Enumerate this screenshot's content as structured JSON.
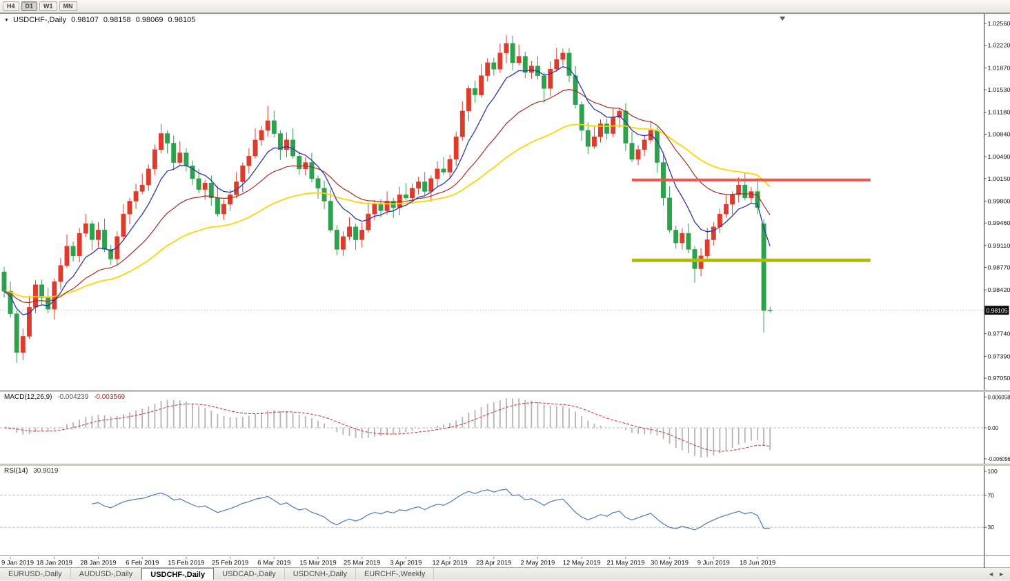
{
  "toolbar": {
    "timeframes": [
      "H4",
      "D1",
      "W1",
      "MN"
    ],
    "active": "D1"
  },
  "tabs": {
    "items": [
      "EURUSD-,Daily",
      "AUDUSD-,Daily",
      "USDCHF-,Daily",
      "USDCAD-,Daily",
      "USDCNH-,Daily",
      "EURCHF-,Weekly"
    ],
    "active_index": 2,
    "nav_left_icon": "◄",
    "nav_right_icon": "►"
  },
  "chart_data": {
    "type": "candlestick",
    "symbol": "USDCHF-",
    "timeframe": "Daily",
    "title": {
      "symbol": "USDCHF-,Daily",
      "marker_icon": "▼"
    },
    "title_quote": {
      "open": "0.98107",
      "high": "0.98158",
      "low": "0.98069",
      "close": "0.98105"
    },
    "price_axis": {
      "top": 1.0256,
      "bottom": 0.9705,
      "labels": [
        "1.02560",
        "1.02220",
        "1.01870",
        "1.01530",
        "1.01180",
        "1.00840",
        "1.00490",
        "1.00150",
        "0.99800",
        "0.99460",
        "0.99110",
        "0.98770",
        "0.98420",
        "0.97740",
        "0.97390",
        "0.97050"
      ]
    },
    "current_price": 0.98105,
    "current_price_label": "0.98105",
    "price_line_color": "#b0b0b0",
    "candle_colors": {
      "bull": "#dd3c2c",
      "bear": "#2da14c"
    },
    "candles": [
      [
        0.987,
        0.9878,
        0.983,
        0.984
      ],
      [
        0.984,
        0.9855,
        0.9799,
        0.9805
      ],
      [
        0.9805,
        0.981,
        0.9729,
        0.9745
      ],
      [
        0.9745,
        0.9782,
        0.9733,
        0.977
      ],
      [
        0.977,
        0.9833,
        0.9766,
        0.9815
      ],
      [
        0.9815,
        0.9857,
        0.9806,
        0.985
      ],
      [
        0.985,
        0.9858,
        0.982,
        0.983
      ],
      [
        0.983,
        0.9845,
        0.9806,
        0.9812
      ],
      [
        0.9812,
        0.986,
        0.9796,
        0.9855
      ],
      [
        0.9855,
        0.9892,
        0.9843,
        0.988
      ],
      [
        0.988,
        0.9928,
        0.9876,
        0.991
      ],
      [
        0.991,
        0.9917,
        0.9886,
        0.9895
      ],
      [
        0.9895,
        0.9938,
        0.9885,
        0.993
      ],
      [
        0.993,
        0.996,
        0.9924,
        0.9945
      ],
      [
        0.9945,
        0.995,
        0.9904,
        0.992
      ],
      [
        0.992,
        0.9947,
        0.9908,
        0.9935
      ],
      [
        0.9935,
        0.9953,
        0.9901,
        0.9905
      ],
      [
        0.9905,
        0.9912,
        0.9881,
        0.989
      ],
      [
        0.989,
        0.9933,
        0.988,
        0.9925
      ],
      [
        0.9925,
        0.9975,
        0.9919,
        0.996
      ],
      [
        0.996,
        0.9985,
        0.9944,
        0.998
      ],
      [
        0.998,
        1.0007,
        0.9968,
        0.9995
      ],
      [
        0.9995,
        1.0023,
        0.9991,
        1.0005
      ],
      [
        1.0005,
        1.0037,
        0.9996,
        1.003
      ],
      [
        1.003,
        1.0068,
        1.002,
        1.006
      ],
      [
        1.006,
        1.01,
        1.0054,
        1.0085
      ],
      [
        1.0085,
        1.009,
        1.0054,
        1.007
      ],
      [
        1.007,
        1.0082,
        1.0028,
        1.004
      ],
      [
        1.004,
        1.0073,
        1.0036,
        1.0055
      ],
      [
        1.0055,
        1.0062,
        1.0026,
        1.0035
      ],
      [
        1.0035,
        1.0043,
        1.0005,
        1.0015
      ],
      [
        1.0015,
        1.003,
        0.9992,
        0.9998
      ],
      [
        0.9998,
        1.0013,
        0.9982,
        1.0008
      ],
      [
        1.0008,
        1.002,
        0.9973,
        0.9985
      ],
      [
        0.9985,
        1.0003,
        0.9956,
        0.996
      ],
      [
        0.996,
        0.9982,
        0.9951,
        0.9975
      ],
      [
        0.9975,
        0.9998,
        0.9965,
        0.999
      ],
      [
        0.999,
        1.0025,
        0.9984,
        1.001
      ],
      [
        1.001,
        1.004,
        0.9994,
        1.0035
      ],
      [
        1.0035,
        1.0062,
        1.0023,
        1.005
      ],
      [
        1.005,
        1.0093,
        1.0046,
        1.0075
      ],
      [
        1.0075,
        1.0097,
        1.0066,
        1.009
      ],
      [
        1.009,
        1.0128,
        1.008,
        1.0105
      ],
      [
        1.0105,
        1.012,
        1.0079,
        1.0085
      ],
      [
        1.0085,
        1.009,
        1.0044,
        1.006
      ],
      [
        1.006,
        1.0087,
        1.0048,
        1.0075
      ],
      [
        1.0075,
        1.0093,
        1.0046,
        1.005
      ],
      [
        1.005,
        1.0057,
        1.0021,
        1.003
      ],
      [
        1.003,
        1.0048,
        1.002,
        1.004
      ],
      [
        1.004,
        1.0055,
        1.0009,
        1.0015
      ],
      [
        1.0015,
        1.002,
        0.9984,
        1.0
      ],
      [
        1.0,
        1.0012,
        0.9968,
        0.998
      ],
      [
        0.998,
        0.9998,
        0.9931,
        0.9935
      ],
      [
        0.9935,
        0.9942,
        0.9896,
        0.9905
      ],
      [
        0.9905,
        0.9933,
        0.9895,
        0.9925
      ],
      [
        0.9925,
        0.9955,
        0.9919,
        0.994
      ],
      [
        0.994,
        0.9945,
        0.9904,
        0.992
      ],
      [
        0.992,
        0.9947,
        0.9908,
        0.9935
      ],
      [
        0.9935,
        0.9978,
        0.9931,
        0.996
      ],
      [
        0.996,
        0.9982,
        0.9951,
        0.9975
      ],
      [
        0.9975,
        0.9983,
        0.9955,
        0.9965
      ],
      [
        0.9965,
        0.9995,
        0.9959,
        0.998
      ],
      [
        0.998,
        0.9985,
        0.9954,
        0.997
      ],
      [
        0.997,
        1.0002,
        0.9958,
        0.999
      ],
      [
        0.999,
        1.0008,
        0.9981,
        0.9985
      ],
      [
        0.9985,
        1.0007,
        0.9976,
        1.0
      ],
      [
        1.0,
        1.0018,
        0.999,
        1.001
      ],
      [
        1.001,
        1.0025,
        0.9989,
        0.9995
      ],
      [
        0.9995,
        1.002,
        0.9979,
        1.0015
      ],
      [
        1.0015,
        1.0042,
        1.0003,
        1.003
      ],
      [
        1.003,
        1.0048,
        1.0021,
        1.0025
      ],
      [
        1.0025,
        1.0052,
        1.0016,
        1.0045
      ],
      [
        1.0045,
        1.0088,
        1.0035,
        1.008
      ],
      [
        1.008,
        1.0135,
        1.0074,
        1.012
      ],
      [
        1.012,
        1.016,
        1.0104,
        1.0155
      ],
      [
        1.0155,
        1.0167,
        1.0133,
        1.0145
      ],
      [
        1.0145,
        1.0193,
        1.0141,
        1.0175
      ],
      [
        1.0175,
        1.0202,
        1.0166,
        1.0195
      ],
      [
        1.0195,
        1.0203,
        1.0175,
        1.0185
      ],
      [
        1.0185,
        1.0225,
        1.0179,
        1.021
      ],
      [
        1.021,
        1.0238,
        1.0194,
        1.0225
      ],
      [
        1.0225,
        1.0237,
        1.0183,
        1.0195
      ],
      [
        1.0195,
        1.0223,
        1.0191,
        1.0205
      ],
      [
        1.0205,
        1.0212,
        1.0171,
        1.018
      ],
      [
        1.018,
        1.0198,
        1.017,
        1.019
      ],
      [
        1.019,
        1.0205,
        1.0169,
        1.0175
      ],
      [
        1.0175,
        1.018,
        1.0133,
        1.0155
      ],
      [
        1.0155,
        1.0197,
        1.0143,
        1.0185
      ],
      [
        1.0185,
        1.0218,
        1.0181,
        1.02
      ],
      [
        1.02,
        1.0217,
        1.0191,
        1.021
      ],
      [
        1.021,
        1.0218,
        1.0165,
        1.0175
      ],
      [
        1.0175,
        1.019,
        1.0124,
        1.013
      ],
      [
        1.013,
        1.0135,
        1.0074,
        1.009
      ],
      [
        1.009,
        1.0102,
        1.0053,
        1.0065
      ],
      [
        1.0065,
        1.0098,
        1.0061,
        1.008
      ],
      [
        1.008,
        1.0107,
        1.0071,
        1.01
      ],
      [
        1.01,
        1.0108,
        1.0075,
        1.0085
      ],
      [
        1.0085,
        1.0125,
        1.0079,
        1.011
      ],
      [
        1.011,
        1.0125,
        1.0094,
        1.012
      ],
      [
        1.012,
        1.0132,
        1.0058,
        1.007
      ],
      [
        1.007,
        1.0088,
        1.0041,
        1.0045
      ],
      [
        1.0045,
        1.0067,
        1.0036,
        1.006
      ],
      [
        1.006,
        1.0083,
        1.005,
        1.0075
      ],
      [
        1.0075,
        1.0105,
        1.0069,
        1.009
      ],
      [
        1.009,
        1.0095,
        1.0024,
        1.004
      ],
      [
        1.004,
        1.0052,
        0.9973,
        0.9985
      ],
      [
        0.9985,
        1.0003,
        0.9931,
        0.9935
      ],
      [
        0.9935,
        0.9942,
        0.9906,
        0.9915
      ],
      [
        0.9915,
        0.9938,
        0.9905,
        0.993
      ],
      [
        0.993,
        0.9945,
        0.9899,
        0.9905
      ],
      [
        0.9905,
        0.991,
        0.9853,
        0.9875
      ],
      [
        0.9875,
        0.9907,
        0.9863,
        0.9895
      ],
      [
        0.9895,
        0.9938,
        0.9891,
        0.992
      ],
      [
        0.992,
        0.9947,
        0.9911,
        0.994
      ],
      [
        0.994,
        0.9968,
        0.993,
        0.996
      ],
      [
        0.996,
        0.999,
        0.9954,
        0.9975
      ],
      [
        0.9975,
        0.9995,
        0.9959,
        0.999
      ],
      [
        0.999,
        1.0017,
        0.9978,
        1.0005
      ],
      [
        1.0005,
        1.0023,
        0.9981,
        0.9985
      ],
      [
        0.9985,
        1.0002,
        0.9976,
        0.9995
      ],
      [
        0.9995,
        1.0016,
        0.996,
        0.997
      ],
      [
        0.9945,
        0.9952,
        0.9776,
        0.981
      ],
      [
        0.98107,
        0.98158,
        0.98069,
        0.98105
      ]
    ],
    "date_labels": [
      {
        "index": 1,
        "label": "9 Jan 2019"
      },
      {
        "index": 8,
        "label": "18 Jan 2019"
      },
      {
        "index": 15,
        "label": "28 Jan 2019"
      },
      {
        "index": 22,
        "label": "6 Feb 2019"
      },
      {
        "index": 29,
        "label": "15 Feb 2019"
      },
      {
        "index": 36,
        "label": "25 Feb 2019"
      },
      {
        "index": 43,
        "label": "6 Mar 2019"
      },
      {
        "index": 50,
        "label": "15 Mar 2019"
      },
      {
        "index": 57,
        "label": "25 Mar 2019"
      },
      {
        "index": 64,
        "label": "3 Apr 2019"
      },
      {
        "index": 71,
        "label": "12 Apr 2019"
      },
      {
        "index": 78,
        "label": "23 Apr 2019"
      },
      {
        "index": 85,
        "label": "2 May 2019"
      },
      {
        "index": 92,
        "label": "12 May 2019"
      },
      {
        "index": 99,
        "label": "21 May 2019"
      },
      {
        "index": 106,
        "label": "30 May 2019"
      },
      {
        "index": 113,
        "label": "9 Jun 2019"
      },
      {
        "index": 120,
        "label": "18 Jun 2019"
      }
    ],
    "overlays": {
      "ma_fast": {
        "type": "ema",
        "period": 8,
        "color": "#2936ae",
        "width": 1.3
      },
      "ma_mid": {
        "type": "ema",
        "period": 21,
        "color": "#a82a26",
        "width": 1.2
      },
      "ma_slow": {
        "type": "ema",
        "period": 45,
        "color": "#ffd400",
        "width": 1.8
      }
    },
    "levels": [
      {
        "name": "resistance",
        "price": 1.0013,
        "color": "#f0544a",
        "width": 4,
        "start_idx": 100,
        "end_idx": 138
      },
      {
        "name": "support",
        "price": 0.9888,
        "color": "#b2bd00",
        "width": 5,
        "start_idx": 100,
        "end_idx": 138
      }
    ],
    "indicators": {
      "macd": {
        "label": "MACD(12,26,9)",
        "main_value": "-0.004239",
        "signal_value": "-0.003569",
        "fast": 12,
        "slow": 26,
        "signal": 9,
        "range": 0.0061,
        "axis_labels": [
          "0.006058",
          "0.00",
          "-0.006096"
        ],
        "hist_color": "#b4b4b4",
        "signal_color": "#c63232"
      },
      "rsi": {
        "label": "RSI(14)",
        "value": "30.9019",
        "period": 14,
        "axis_labels": [
          "100",
          "70",
          "30"
        ],
        "levels": [
          70,
          30
        ],
        "color": "#4a7ab8"
      }
    },
    "shift_marker_icon": "triangle-down",
    "axis_line_color": "#2a2a2a"
  }
}
